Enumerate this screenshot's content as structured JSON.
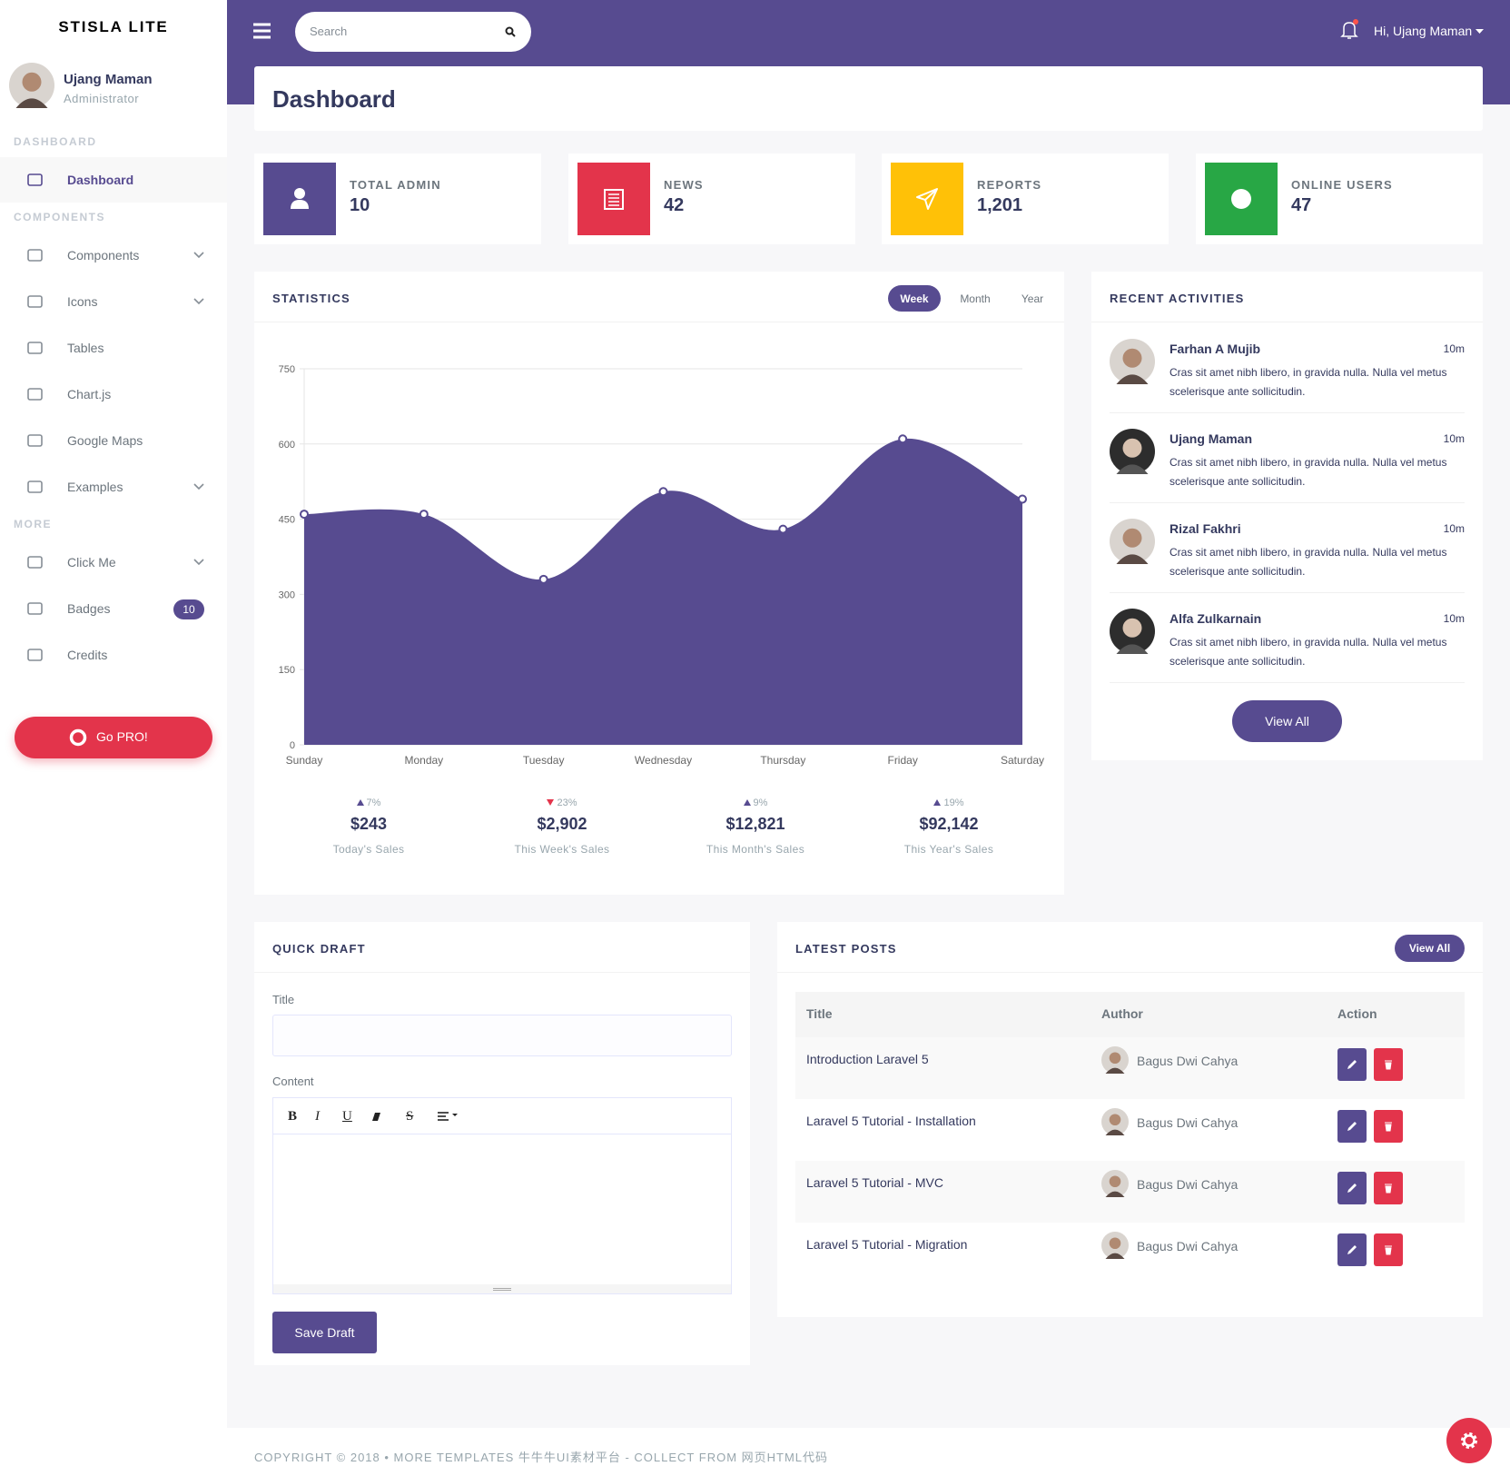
{
  "sidebar": {
    "brand": "STISLA LITE",
    "user": {
      "name": "Ujang Maman",
      "role": "Administrator"
    },
    "menu": [
      {
        "header": "DASHBOARD",
        "items": [
          {
            "label": "Dashboard",
            "active": true
          }
        ]
      },
      {
        "header": "COMPONENTS",
        "items": [
          {
            "label": "Components",
            "dropdown": true
          },
          {
            "label": "Icons",
            "dropdown": true
          },
          {
            "label": "Tables"
          },
          {
            "label": "Chart.js"
          },
          {
            "label": "Google Maps"
          },
          {
            "label": "Examples",
            "dropdown": true
          }
        ]
      },
      {
        "header": "MORE",
        "items": [
          {
            "label": "Click Me",
            "dropdown": true
          },
          {
            "label": "Badges",
            "badge": "10"
          },
          {
            "label": "Credits"
          }
        ]
      }
    ],
    "cta": "Go PRO!"
  },
  "navbar": {
    "search_placeholder": "Search",
    "user_greeting": "Hi, Ujang Maman"
  },
  "page_title": "Dashboard",
  "stat_cards": [
    {
      "label": "TOTAL ADMIN",
      "value": "10",
      "color": "#574b90"
    },
    {
      "label": "NEWS",
      "value": "42",
      "color": "#e3344b"
    },
    {
      "label": "REPORTS",
      "value": "1,201",
      "color": "#ffc107"
    },
    {
      "label": "ONLINE USERS",
      "value": "47",
      "color": "#28a745"
    }
  ],
  "statistics": {
    "title": "STATISTICS",
    "tabs": [
      {
        "label": "Week",
        "active": true
      },
      {
        "label": "Month"
      },
      {
        "label": "Year"
      }
    ],
    "chart": {
      "type": "area",
      "categories": [
        "Sunday",
        "Monday",
        "Tuesday",
        "Wednesday",
        "Thursday",
        "Friday",
        "Saturday"
      ],
      "values": [
        460,
        460,
        330,
        505,
        430,
        610,
        490
      ],
      "ylim": [
        0,
        750
      ],
      "yticks": [
        0,
        150,
        300,
        450,
        600,
        750
      ],
      "grid": true,
      "color": "#574b90"
    },
    "summary": [
      {
        "change": "7%",
        "direction": "up",
        "amount": "$243",
        "label": "Today's Sales"
      },
      {
        "change": "23%",
        "direction": "down",
        "amount": "$2,902",
        "label": "This Week's Sales"
      },
      {
        "change": "9%",
        "direction": "up",
        "amount": "$12,821",
        "label": "This Month's Sales"
      },
      {
        "change": "19%",
        "direction": "up",
        "amount": "$92,142",
        "label": "This Year's Sales"
      }
    ]
  },
  "recent_activities": {
    "title": "RECENT ACTIVITIES",
    "button": "View All",
    "items": [
      {
        "name": "Farhan A Mujib",
        "time": "10m",
        "text": "Cras sit amet nibh libero, in gravida nulla. Nulla vel metus scelerisque ante sollicitudin."
      },
      {
        "name": "Ujang Maman",
        "time": "10m",
        "text": "Cras sit amet nibh libero, in gravida nulla. Nulla vel metus scelerisque ante sollicitudin."
      },
      {
        "name": "Rizal Fakhri",
        "time": "10m",
        "text": "Cras sit amet nibh libero, in gravida nulla. Nulla vel metus scelerisque ante sollicitudin."
      },
      {
        "name": "Alfa Zulkarnain",
        "time": "10m",
        "text": "Cras sit amet nibh libero, in gravida nulla. Nulla vel metus scelerisque ante sollicitudin."
      }
    ]
  },
  "quick_draft": {
    "title": "QUICK DRAFT",
    "title_label": "Title",
    "content_label": "Content",
    "toolbar": [
      "B",
      "I",
      "U",
      "S"
    ],
    "button": "Save Draft"
  },
  "latest_posts": {
    "title": "LATEST POSTS",
    "button": "View All",
    "columns": [
      "Title",
      "Author",
      "Action"
    ],
    "rows": [
      [
        "Introduction Laravel 5",
        "Bagus Dwi Cahya"
      ],
      [
        "Laravel 5 Tutorial - Installation",
        "Bagus Dwi Cahya"
      ],
      [
        "Laravel 5 Tutorial - MVC",
        "Bagus Dwi Cahya"
      ],
      [
        "Laravel 5 Tutorial - Migration",
        "Bagus Dwi Cahya"
      ]
    ]
  },
  "footer": "COPYRIGHT © 2018 • MORE TEMPLATES 牛牛牛UI素材平台 - COLLECT FROM 网页HTML代码"
}
